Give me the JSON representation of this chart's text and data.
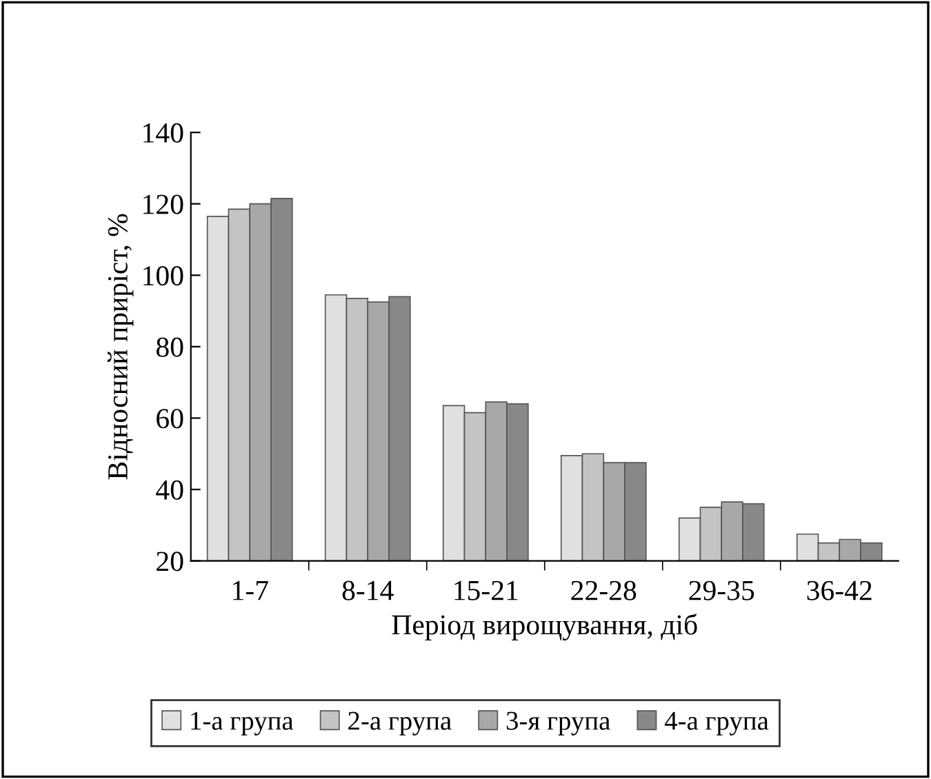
{
  "chart_data": {
    "type": "bar",
    "xlabel": "Період вирощування, діб",
    "ylabel": "Відносний приріст, %",
    "categories": [
      "1-7",
      "8-14",
      "15-21",
      "22-28",
      "29-35",
      "36-42"
    ],
    "series": [
      {
        "name": "1-а група",
        "color": "#e0e0e0",
        "values": [
          116.5,
          94.5,
          63.5,
          49.5,
          32,
          27.5
        ]
      },
      {
        "name": "2-а група",
        "color": "#c4c4c4",
        "values": [
          118.5,
          93.5,
          61.5,
          50,
          35,
          25
        ]
      },
      {
        "name": "3-я група",
        "color": "#a8a8a8",
        "values": [
          120,
          92.5,
          64.5,
          47.5,
          36.5,
          26
        ]
      },
      {
        "name": "4-а група",
        "color": "#888888",
        "values": [
          121.5,
          94,
          64,
          47.5,
          36,
          25
        ]
      }
    ],
    "ylim": [
      20,
      140
    ],
    "yticks": [
      20,
      40,
      60,
      80,
      100,
      120,
      140
    ],
    "grid": false,
    "legend": "bottom"
  }
}
